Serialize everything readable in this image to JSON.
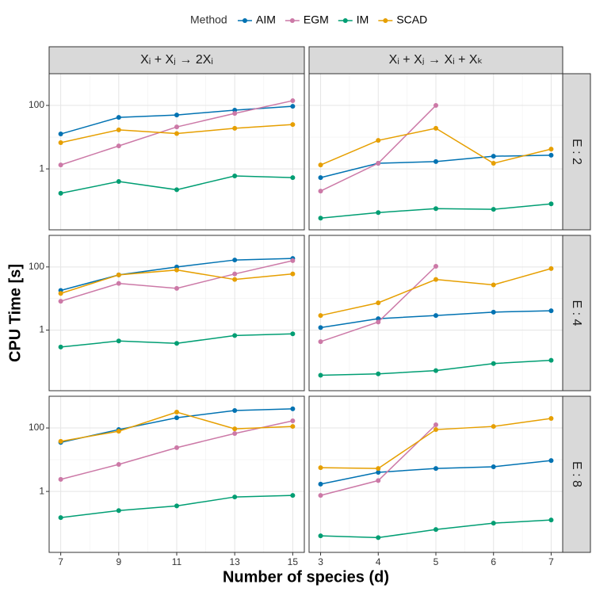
{
  "legend_title": "Method",
  "x_label": "Number of species (d)",
  "y_label": "CPU Time [s]",
  "facets": {
    "columns": [
      "Xᵢ + Xⱼ → 2Xᵢ",
      "Xᵢ + Xⱼ → Xᵢ + Xₖ"
    ],
    "rows": [
      "E : 2",
      "E : 4",
      "E : 8"
    ]
  },
  "chart_data": [
    {
      "type": "line",
      "x": [
        7,
        9,
        11,
        13,
        15
      ],
      "xlim": [
        6.6,
        15.4
      ],
      "xticks": [
        7,
        9,
        11,
        13,
        15
      ],
      "ylim": [
        0.012,
        1000
      ],
      "yticks": [
        1,
        100
      ],
      "log_y": true,
      "grid": true,
      "series": [
        {
          "name": "AIM",
          "color": "#0072B2",
          "values": [
            12.6,
            42,
            50,
            71,
            94
          ]
        },
        {
          "name": "EGM",
          "color": "#CC79A7",
          "values": [
            1.33,
            5.3,
            21,
            56,
            141
          ]
        },
        {
          "name": "IM",
          "color": "#009E73",
          "values": [
            0.17,
            0.4,
            0.22,
            0.6,
            0.53
          ]
        },
        {
          "name": "SCAD",
          "color": "#E69F00",
          "values": [
            6.7,
            17,
            13,
            19,
            25
          ]
        }
      ]
    },
    {
      "type": "line",
      "x": [
        3,
        4,
        5,
        6,
        7
      ],
      "xlim": [
        2.8,
        7.2
      ],
      "xticks": [
        3,
        4,
        5,
        6,
        7
      ],
      "ylim": [
        0.012,
        1000
      ],
      "yticks": [
        1,
        100
      ],
      "log_y": true,
      "grid": true,
      "series": [
        {
          "name": "AIM",
          "color": "#0072B2",
          "values": [
            0.53,
            1.5,
            1.7,
            2.5,
            2.7
          ]
        },
        {
          "name": "EGM",
          "color": "#CC79A7",
          "values": [
            0.2,
            1.5,
            100,
            null,
            null
          ]
        },
        {
          "name": "IM",
          "color": "#009E73",
          "values": [
            0.028,
            0.042,
            0.056,
            0.053,
            0.079
          ]
        },
        {
          "name": "SCAD",
          "color": "#E69F00",
          "values": [
            1.33,
            7.9,
            19,
            1.5,
            4.2
          ]
        }
      ]
    },
    {
      "type": "line",
      "x": [
        7,
        9,
        11,
        13,
        15
      ],
      "xlim": [
        6.6,
        15.4
      ],
      "xticks": [
        7,
        9,
        11,
        13,
        15
      ],
      "ylim": [
        0.012,
        1000
      ],
      "yticks": [
        1,
        100
      ],
      "log_y": true,
      "grid": true,
      "series": [
        {
          "name": "AIM",
          "color": "#0072B2",
          "values": [
            18,
            56,
            100,
            166,
            186
          ]
        },
        {
          "name": "EGM",
          "color": "#CC79A7",
          "values": [
            8.2,
            30,
            21,
            60,
            158
          ]
        },
        {
          "name": "IM",
          "color": "#009E73",
          "values": [
            0.29,
            0.45,
            0.38,
            0.67,
            0.76
          ]
        },
        {
          "name": "SCAD",
          "color": "#E69F00",
          "values": [
            14.5,
            56,
            80,
            40,
            60
          ]
        }
      ]
    },
    {
      "type": "line",
      "x": [
        3,
        4,
        5,
        6,
        7
      ],
      "xlim": [
        2.8,
        7.2
      ],
      "xticks": [
        3,
        4,
        5,
        6,
        7
      ],
      "ylim": [
        0.012,
        1000
      ],
      "yticks": [
        1,
        100
      ],
      "log_y": true,
      "grid": true,
      "series": [
        {
          "name": "AIM",
          "color": "#0072B2",
          "values": [
            1.2,
            2.3,
            2.9,
            3.7,
            4.1
          ]
        },
        {
          "name": "EGM",
          "color": "#CC79A7",
          "values": [
            0.43,
            1.8,
            105,
            null,
            null
          ]
        },
        {
          "name": "IM",
          "color": "#009E73",
          "values": [
            0.037,
            0.041,
            0.052,
            0.087,
            0.11
          ]
        },
        {
          "name": "SCAD",
          "color": "#E69F00",
          "values": [
            2.9,
            7.3,
            40,
            27,
            89
          ]
        }
      ]
    },
    {
      "type": "line",
      "x": [
        7,
        9,
        11,
        13,
        15
      ],
      "xlim": [
        6.6,
        15.4
      ],
      "xticks": [
        7,
        9,
        11,
        13,
        15
      ],
      "ylim": [
        0.012,
        1000
      ],
      "yticks": [
        1,
        100
      ],
      "log_y": true,
      "grid": true,
      "series": [
        {
          "name": "AIM",
          "color": "#0072B2",
          "values": [
            35,
            89,
            210,
            355,
            400
          ]
        },
        {
          "name": "EGM",
          "color": "#CC79A7",
          "values": [
            2.4,
            7.1,
            24,
            67,
            168
          ]
        },
        {
          "name": "IM",
          "color": "#009E73",
          "values": [
            0.15,
            0.25,
            0.35,
            0.67,
            0.75
          ]
        },
        {
          "name": "SCAD",
          "color": "#E69F00",
          "values": [
            38,
            79,
            316,
            94,
            112
          ]
        }
      ]
    },
    {
      "type": "line",
      "x": [
        3,
        4,
        5,
        6,
        7
      ],
      "xlim": [
        2.8,
        7.2
      ],
      "xticks": [
        3,
        4,
        5,
        6,
        7
      ],
      "ylim": [
        0.012,
        1000
      ],
      "yticks": [
        1,
        100
      ],
      "log_y": true,
      "grid": true,
      "series": [
        {
          "name": "AIM",
          "color": "#0072B2",
          "values": [
            1.7,
            4,
            5.3,
            6,
            9.4
          ]
        },
        {
          "name": "EGM",
          "color": "#CC79A7",
          "values": [
            0.75,
            2.2,
            126,
            null,
            null
          ]
        },
        {
          "name": "IM",
          "color": "#009E73",
          "values": [
            0.04,
            0.035,
            0.063,
            0.1,
            0.126
          ]
        },
        {
          "name": "SCAD",
          "color": "#E69F00",
          "values": [
            5.6,
            5.3,
            89,
            112,
            200
          ]
        }
      ]
    }
  ]
}
